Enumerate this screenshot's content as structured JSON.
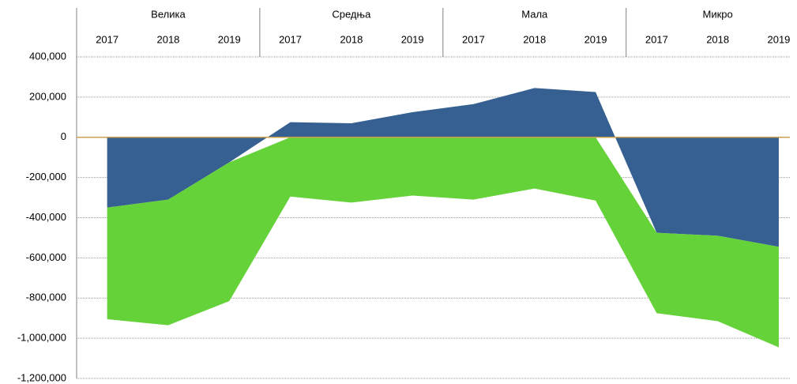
{
  "chart_data": {
    "type": "stacked-area",
    "groups": [
      "Велика",
      "Средња",
      "Мала",
      "Микро"
    ],
    "categories": [
      "2017",
      "2018",
      "2019",
      "2017",
      "2018",
      "2019",
      "2017",
      "2018",
      "2019",
      "2017",
      "2018",
      "2019"
    ],
    "series": [
      {
        "color": "#356091",
        "values": [
          -350000,
          -310000,
          -125000,
          75000,
          70000,
          125000,
          165000,
          245000,
          225000,
          -475000,
          -490000,
          -545000
        ]
      },
      {
        "color": "#66d23a",
        "values": [
          -555000,
          -625000,
          -690000,
          -295000,
          -325000,
          -290000,
          -310000,
          -255000,
          -315000,
          -400000,
          -425000,
          -500000
        ]
      }
    ],
    "ylim": [
      -1200000,
      400000
    ],
    "yticks": [
      {
        "value": 400000,
        "label": "400,000"
      },
      {
        "value": 200000,
        "label": "200,000"
      },
      0,
      {
        "value": -200000,
        "label": "-200,000"
      },
      {
        "value": -400000,
        "label": "-400,000"
      },
      {
        "value": -600000,
        "label": "-600,000"
      },
      {
        "value": -800000,
        "label": "-800,000"
      },
      {
        "value": -1000000,
        "label": "-1,000,000"
      },
      {
        "value": -1200000,
        "label": "-1,200,000"
      }
    ],
    "grid": true
  }
}
